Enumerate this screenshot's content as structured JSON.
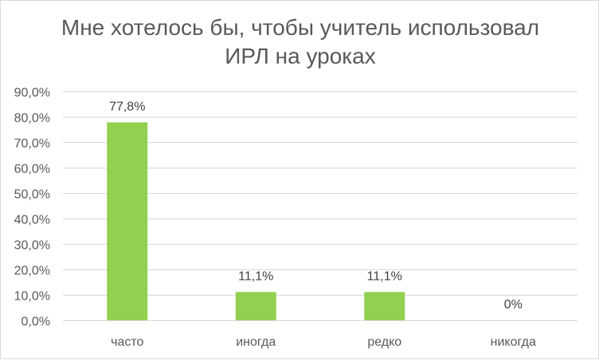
{
  "chart_data": {
    "type": "bar",
    "title_lines": [
      "Мне хотелось бы, чтобы учитель использовал",
      "ИРЛ на уроках"
    ],
    "categories": [
      "часто",
      "иногда",
      "редко",
      "никогда"
    ],
    "values": [
      77.8,
      11.1,
      11.1,
      0
    ],
    "data_labels": [
      "77,8%",
      "11,1%",
      "11,1%",
      "0%"
    ],
    "y_ticks": [
      "0,0%",
      "10,0%",
      "20,0%",
      "30,0%",
      "40,0%",
      "50,0%",
      "60,0%",
      "70,0%",
      "80,0%",
      "90,0%"
    ],
    "ylim": [
      0,
      90
    ],
    "grid": true,
    "legend": "none",
    "colors": {
      "bar": "#92d050",
      "grid": "#d9d9d9",
      "text": "#595959"
    }
  }
}
